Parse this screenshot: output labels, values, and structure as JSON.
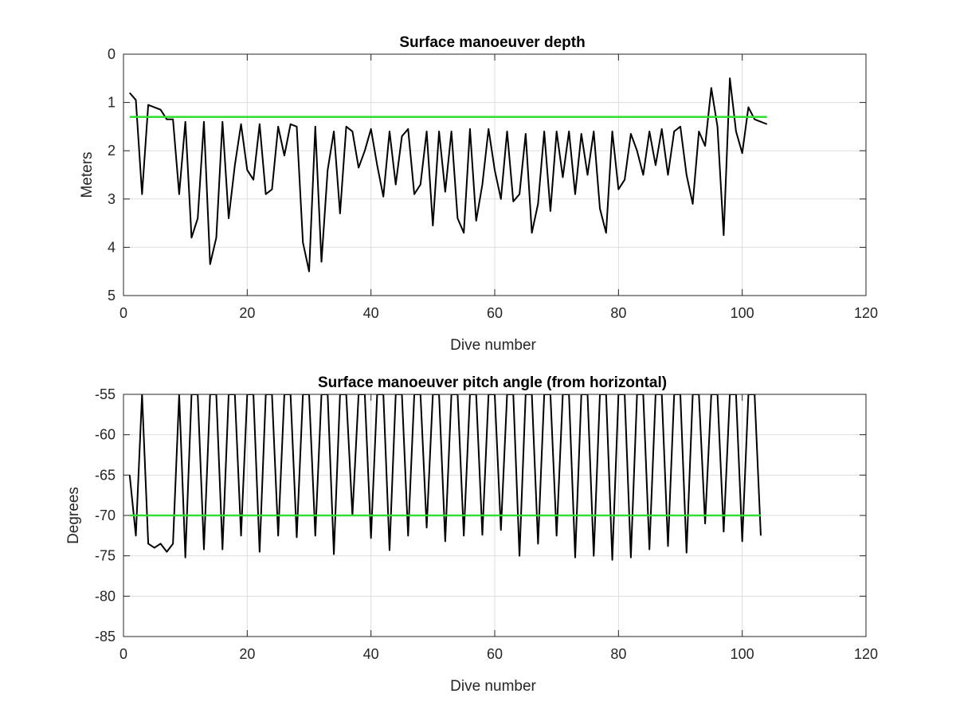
{
  "colors": {
    "series": "#000000",
    "reference": "#33dd33",
    "grid": "#dddddd",
    "axis": "#262626"
  },
  "chart_data": [
    {
      "type": "line",
      "title": "Surface manoeuver depth",
      "xlabel": "Dive number",
      "ylabel": "Meters",
      "xlim": [
        0,
        120
      ],
      "ylim": [
        0,
        5
      ],
      "y_reversed": true,
      "grid": true,
      "x_ticks": [
        "0",
        "20",
        "40",
        "60",
        "80",
        "100",
        "120"
      ],
      "y_ticks": [
        "0",
        "1",
        "2",
        "3",
        "4",
        "5"
      ],
      "series": [
        {
          "x": [
            1,
            2,
            3,
            4,
            5,
            6,
            7,
            8,
            9,
            10,
            11,
            12,
            13,
            14,
            15,
            16,
            17,
            18,
            19,
            20,
            21,
            22,
            23,
            24,
            25,
            26,
            27,
            28,
            29,
            30,
            31,
            32,
            33,
            34,
            35,
            36,
            37,
            38,
            39,
            40,
            41,
            42,
            43,
            44,
            45,
            46,
            47,
            48,
            49,
            50,
            51,
            52,
            53,
            54,
            55,
            56,
            57,
            58,
            59,
            60,
            61,
            62,
            63,
            64,
            65,
            66,
            67,
            68,
            69,
            70,
            71,
            72,
            73,
            74,
            75,
            76,
            77,
            78,
            79,
            80,
            81,
            82,
            83,
            84,
            85,
            86,
            87,
            88,
            89,
            90,
            91,
            92,
            93,
            94,
            95,
            96,
            97,
            98,
            99,
            100,
            101,
            102,
            103,
            104
          ],
          "y": [
            0.8,
            0.95,
            2.9,
            1.05,
            1.1,
            1.15,
            1.35,
            1.35,
            2.9,
            1.4,
            3.8,
            3.4,
            1.4,
            4.35,
            3.8,
            1.4,
            3.4,
            2.3,
            1.45,
            2.4,
            2.6,
            1.45,
            2.9,
            2.8,
            1.5,
            2.1,
            1.45,
            1.5,
            3.9,
            4.5,
            1.5,
            4.3,
            2.4,
            1.6,
            3.3,
            1.5,
            1.6,
            2.35,
            2.0,
            1.55,
            2.3,
            2.95,
            1.6,
            2.7,
            1.7,
            1.55,
            2.9,
            2.7,
            1.6,
            3.55,
            1.6,
            2.85,
            1.6,
            3.4,
            3.7,
            1.55,
            3.45,
            2.7,
            1.55,
            2.4,
            3.0,
            1.6,
            3.05,
            2.9,
            1.65,
            3.7,
            3.1,
            1.6,
            3.25,
            1.6,
            2.55,
            1.6,
            2.9,
            1.65,
            2.5,
            1.6,
            3.2,
            3.7,
            1.6,
            2.8,
            2.6,
            1.65,
            2.0,
            2.5,
            1.6,
            2.3,
            1.55,
            2.5,
            1.6,
            1.5,
            2.5,
            3.1,
            1.6,
            1.9,
            0.7,
            1.5,
            3.75,
            0.5,
            1.6,
            2.05,
            1.1,
            1.35,
            1.4,
            1.45
          ]
        },
        {
          "x": [
            1,
            104
          ],
          "y": [
            1.3,
            1.3
          ],
          "color": "#33dd33"
        }
      ]
    },
    {
      "type": "line",
      "title": "Surface manoeuver pitch angle (from horizontal)",
      "xlabel": "Dive number",
      "ylabel": "Degrees",
      "xlim": [
        0,
        120
      ],
      "ylim": [
        -85,
        -55
      ],
      "grid": true,
      "x_ticks": [
        "0",
        "20",
        "40",
        "60",
        "80",
        "100",
        "120"
      ],
      "y_ticks": [
        "-55",
        "-60",
        "-65",
        "-70",
        "-75",
        "-80",
        "-85"
      ],
      "series": [
        {
          "x": [
            1,
            2,
            3,
            4,
            5,
            6,
            7,
            8,
            9,
            10,
            11,
            12,
            13,
            14,
            15,
            16,
            17,
            18,
            19,
            20,
            21,
            22,
            23,
            24,
            25,
            26,
            27,
            28,
            29,
            30,
            31,
            32,
            33,
            34,
            35,
            36,
            37,
            38,
            39,
            40,
            41,
            42,
            43,
            44,
            45,
            46,
            47,
            48,
            49,
            50,
            51,
            52,
            53,
            54,
            55,
            56,
            57,
            58,
            59,
            60,
            61,
            62,
            63,
            64,
            65,
            66,
            67,
            68,
            69,
            70,
            71,
            72,
            73,
            74,
            75,
            76,
            77,
            78,
            79,
            80,
            81,
            82,
            83,
            84,
            85,
            86,
            87,
            88,
            89,
            90,
            91,
            92,
            93,
            94,
            95,
            96,
            97,
            98,
            99,
            100,
            101,
            102,
            103
          ],
          "y": [
            -65,
            -72.5,
            -55,
            -73.5,
            -74,
            -73.5,
            -74.5,
            -73.5,
            -55,
            -75.2,
            -55,
            -55,
            -74.2,
            -55,
            -55,
            -74.2,
            -55,
            -55,
            -72.5,
            -55,
            -55,
            -74.5,
            -55,
            -55,
            -72.5,
            -55,
            -55,
            -72.7,
            -55,
            -55,
            -72.5,
            -55,
            -55,
            -74.8,
            -55,
            -55,
            -70,
            -55,
            -55,
            -72.8,
            -55,
            -55,
            -74.3,
            -55,
            -55,
            -72.5,
            -55,
            -55,
            -71.5,
            -55,
            -55,
            -73.2,
            -55,
            -55,
            -72.5,
            -55,
            -55,
            -72.4,
            -55,
            -55,
            -71.8,
            -55,
            -55,
            -75,
            -55,
            -55,
            -73.5,
            -55,
            -55,
            -72.5,
            -55,
            -55,
            -75.2,
            -55,
            -55,
            -75,
            -55,
            -55,
            -75.5,
            -55,
            -55,
            -75.2,
            -55,
            -55,
            -74.2,
            -55,
            -55,
            -73.8,
            -55,
            -55,
            -74.6,
            -55,
            -55,
            -71,
            -55,
            -55,
            -72,
            -55,
            -55,
            -73.2,
            -55,
            -55,
            -72.5
          ]
        },
        {
          "x": [
            1,
            103
          ],
          "y": [
            -70,
            -70
          ],
          "color": "#33dd33"
        }
      ]
    }
  ]
}
